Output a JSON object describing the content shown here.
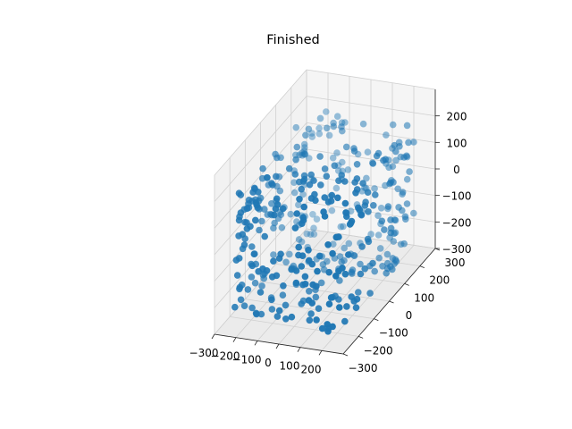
{
  "chart_data": {
    "type": "scatter",
    "projection": "3d",
    "title": "Finished",
    "xlabel": "",
    "ylabel": "",
    "zlabel": "",
    "grid": true,
    "xlim": [
      -300,
      300
    ],
    "ylim": [
      -300,
      300
    ],
    "zlim": [
      -300,
      300
    ],
    "xticks": [
      "−300",
      "−200",
      "−100",
      "0",
      "100",
      "200"
    ],
    "yticks": [
      "−300",
      "−200",
      "−100",
      "0",
      "100",
      "200",
      "300"
    ],
    "zticks": [
      "−300",
      "−200",
      "−100",
      "0",
      "100",
      "200"
    ],
    "marker_color": "#1f77b4",
    "pane_color": "#f2f2f2",
    "grid_color": "#d0d0d0",
    "point_count_estimate": 420,
    "description_of_cloud": {
      "shape": "hollow box shell (points on the six faces of a rectangular box)",
      "x_extent": [
        -240,
        240
      ],
      "y_extent": [
        -240,
        240
      ],
      "z_extent": [
        -260,
        200
      ]
    }
  }
}
